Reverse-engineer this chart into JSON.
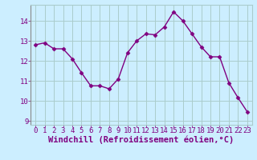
{
  "x": [
    0,
    1,
    2,
    3,
    4,
    5,
    6,
    7,
    8,
    9,
    10,
    11,
    12,
    13,
    14,
    15,
    16,
    17,
    18,
    19,
    20,
    21,
    22,
    23
  ],
  "y": [
    12.8,
    12.9,
    12.6,
    12.6,
    12.1,
    11.4,
    10.75,
    10.75,
    10.6,
    11.1,
    12.4,
    13.0,
    13.35,
    13.3,
    13.7,
    14.45,
    14.0,
    13.35,
    12.7,
    12.2,
    12.2,
    10.9,
    10.15,
    9.45
  ],
  "line_color": "#800080",
  "marker": "D",
  "marker_size": 2.5,
  "bg_color": "#cceeff",
  "grid_color": "#aacccc",
  "xlabel": "Windchill (Refroidissement éolien,°C)",
  "ylim": [
    8.8,
    14.8
  ],
  "xlim": [
    -0.5,
    23.5
  ],
  "yticks": [
    9,
    10,
    11,
    12,
    13,
    14
  ],
  "xticks": [
    0,
    1,
    2,
    3,
    4,
    5,
    6,
    7,
    8,
    9,
    10,
    11,
    12,
    13,
    14,
    15,
    16,
    17,
    18,
    19,
    20,
    21,
    22,
    23
  ],
  "tick_label_color": "#800080",
  "axis_label_color": "#800080",
  "tick_fontsize": 6.5,
  "xlabel_fontsize": 7.5,
  "linewidth": 1.0
}
